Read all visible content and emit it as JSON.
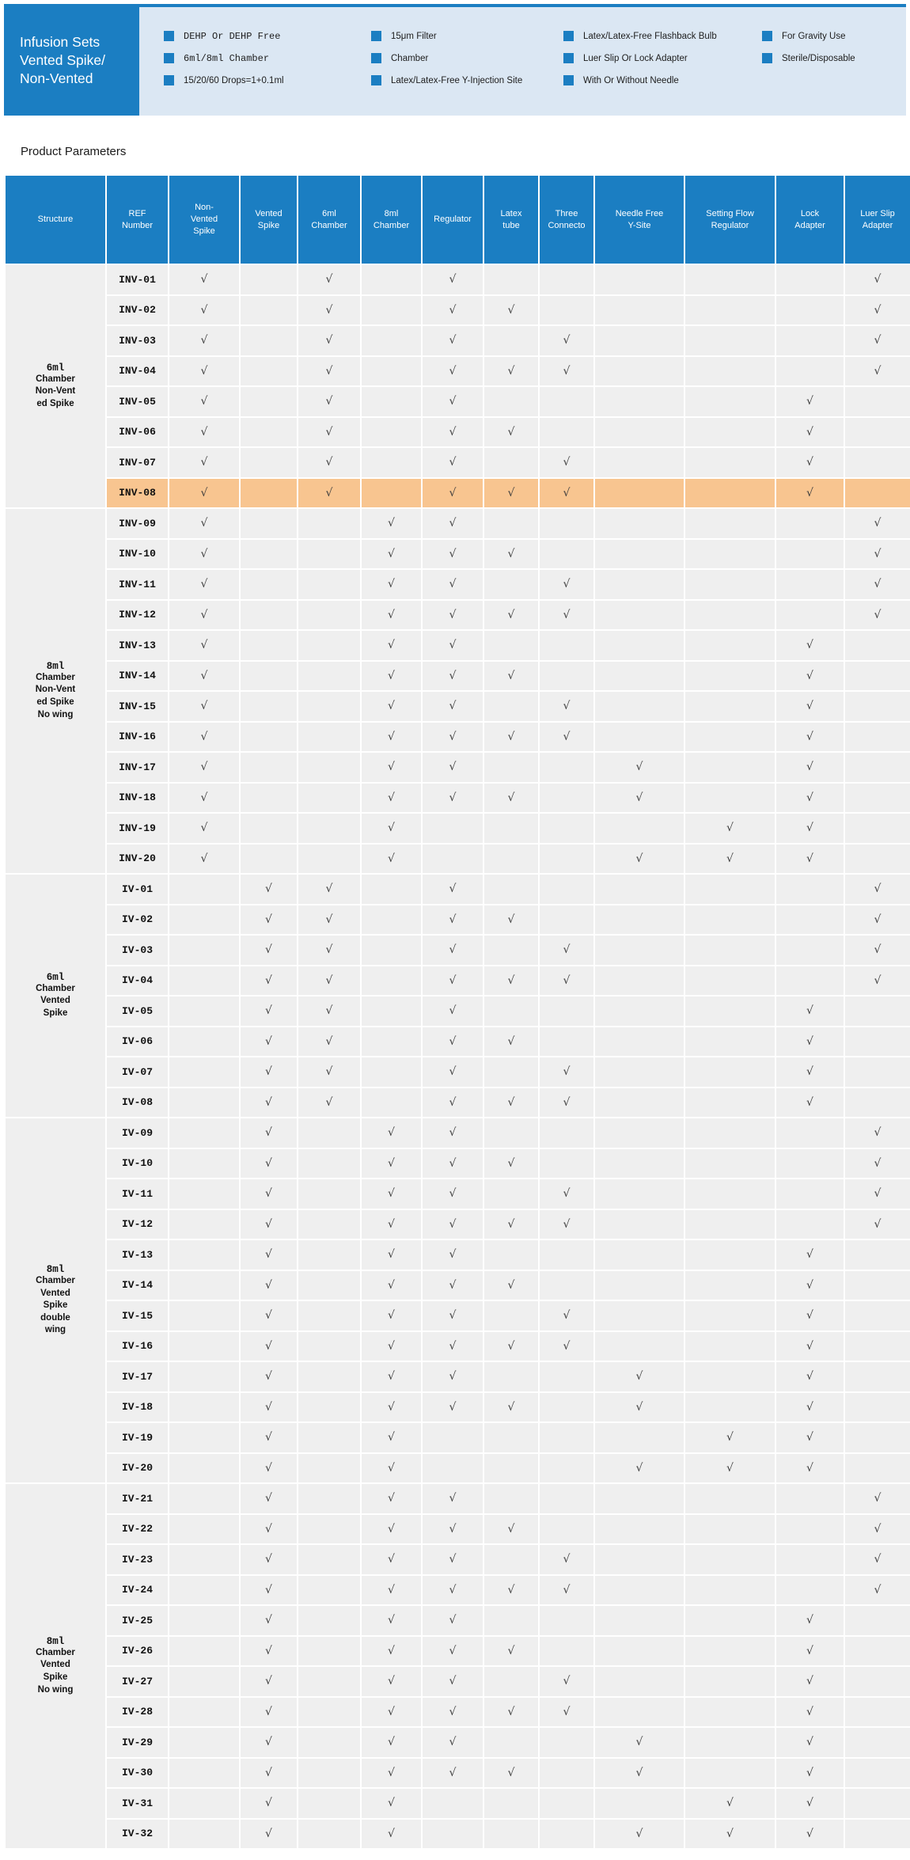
{
  "banner": {
    "title": "Infusion Sets\n Vented Spike/\nNon-Vented",
    "feature_columns": [
      {
        "items": [
          {
            "text": "DEHP Or DEHP Free",
            "mono": true
          },
          {
            "text": "6ml/8ml Chamber",
            "mono": true
          },
          {
            "text": "15/20/60 Drops=1+0.1ml",
            "mono": false
          }
        ]
      },
      {
        "items": [
          {
            "text": "15μm Filter",
            "mono": false
          },
          {
            "text": "Chamber",
            "mono": false
          },
          {
            "text": "Latex/Latex-Free Y-Injection Site",
            "mono": false
          }
        ]
      },
      {
        "items": [
          {
            "text": "Latex/Latex-Free Flashback Bulb",
            "mono": false
          },
          {
            "text": "Luer Slip Or Lock Adapter",
            "mono": false
          },
          {
            "text": "With Or Without Needle",
            "mono": false
          }
        ]
      },
      {
        "items": [
          {
            "text": "For Gravity Use",
            "mono": false
          },
          {
            "text": "Sterile/Disposable",
            "mono": false
          }
        ]
      }
    ]
  },
  "section_heading": "Product Parameters",
  "colors": {
    "primary_blue": "#1b7ec2",
    "light_blue_panel": "#dbe7f3",
    "cell_gray": "#efefef",
    "highlight_orange": "#f8c590"
  },
  "table": {
    "check_glyph": "√",
    "columns": [
      "Structure",
      "REF\nNumber",
      "Non-\nVented\nSpike",
      "Vented\nSpike",
      "6ml\nChamber",
      "8ml\nChamber",
      "Regulator",
      "Latex\ntube",
      "Three\nConnecto",
      "Needle Free\nY-Site",
      "Setting Flow\nRegulator",
      "Lock\nAdapter",
      "Luer Slip\nAdapter"
    ],
    "check_columns": [
      "non_vented_spike",
      "vented_spike",
      "chamber_6ml",
      "chamber_8ml",
      "regulator",
      "latex_tube",
      "three_connecto",
      "needle_free_y_site",
      "setting_flow_regulator",
      "lock_adapter",
      "luer_slip_adapter"
    ],
    "sections": [
      {
        "structure_size": "6ml",
        "structure_label": "Chamber\nNon-Vent\ned Spike",
        "rows": [
          {
            "ref": "INV-01",
            "checks": [
              1,
              0,
              1,
              0,
              1,
              0,
              0,
              0,
              0,
              0,
              1
            ],
            "highlighted": false
          },
          {
            "ref": "INV-02",
            "checks": [
              1,
              0,
              1,
              0,
              1,
              1,
              0,
              0,
              0,
              0,
              1
            ],
            "highlighted": false
          },
          {
            "ref": "INV-03",
            "checks": [
              1,
              0,
              1,
              0,
              1,
              0,
              1,
              0,
              0,
              0,
              1
            ],
            "highlighted": false
          },
          {
            "ref": "INV-04",
            "checks": [
              1,
              0,
              1,
              0,
              1,
              1,
              1,
              0,
              0,
              0,
              1
            ],
            "highlighted": false
          },
          {
            "ref": "INV-05",
            "checks": [
              1,
              0,
              1,
              0,
              1,
              0,
              0,
              0,
              0,
              1,
              0
            ],
            "highlighted": false
          },
          {
            "ref": "INV-06",
            "checks": [
              1,
              0,
              1,
              0,
              1,
              1,
              0,
              0,
              0,
              1,
              0
            ],
            "highlighted": false
          },
          {
            "ref": "INV-07",
            "checks": [
              1,
              0,
              1,
              0,
              1,
              0,
              1,
              0,
              0,
              1,
              0
            ],
            "highlighted": false
          },
          {
            "ref": "INV-08",
            "checks": [
              1,
              0,
              1,
              0,
              1,
              1,
              1,
              0,
              0,
              1,
              0
            ],
            "highlighted": true
          }
        ]
      },
      {
        "structure_size": "8ml",
        "structure_label": "Chamber\nNon-Vent\ned Spike\nNo wing",
        "rows": [
          {
            "ref": "INV-09",
            "checks": [
              1,
              0,
              0,
              1,
              1,
              0,
              0,
              0,
              0,
              0,
              1
            ],
            "highlighted": false
          },
          {
            "ref": "INV-10",
            "checks": [
              1,
              0,
              0,
              1,
              1,
              1,
              0,
              0,
              0,
              0,
              1
            ],
            "highlighted": false
          },
          {
            "ref": "INV-11",
            "checks": [
              1,
              0,
              0,
              1,
              1,
              0,
              1,
              0,
              0,
              0,
              1
            ],
            "highlighted": false
          },
          {
            "ref": "INV-12",
            "checks": [
              1,
              0,
              0,
              1,
              1,
              1,
              1,
              0,
              0,
              0,
              1
            ],
            "highlighted": false
          },
          {
            "ref": "INV-13",
            "checks": [
              1,
              0,
              0,
              1,
              1,
              0,
              0,
              0,
              0,
              1,
              0
            ],
            "highlighted": false
          },
          {
            "ref": "INV-14",
            "checks": [
              1,
              0,
              0,
              1,
              1,
              1,
              0,
              0,
              0,
              1,
              0
            ],
            "highlighted": false
          },
          {
            "ref": "INV-15",
            "checks": [
              1,
              0,
              0,
              1,
              1,
              0,
              1,
              0,
              0,
              1,
              0
            ],
            "highlighted": false
          },
          {
            "ref": "INV-16",
            "checks": [
              1,
              0,
              0,
              1,
              1,
              1,
              1,
              0,
              0,
              1,
              0
            ],
            "highlighted": false
          },
          {
            "ref": "INV-17",
            "checks": [
              1,
              0,
              0,
              1,
              1,
              0,
              0,
              1,
              0,
              1,
              0
            ],
            "highlighted": false
          },
          {
            "ref": "INV-18",
            "checks": [
              1,
              0,
              0,
              1,
              1,
              1,
              0,
              1,
              0,
              1,
              0
            ],
            "highlighted": false
          },
          {
            "ref": "INV-19",
            "checks": [
              1,
              0,
              0,
              1,
              0,
              0,
              0,
              0,
              1,
              1,
              0
            ],
            "highlighted": false
          },
          {
            "ref": "INV-20",
            "checks": [
              1,
              0,
              0,
              1,
              0,
              0,
              0,
              1,
              1,
              1,
              0
            ],
            "highlighted": false
          }
        ]
      },
      {
        "structure_size": "6ml",
        "structure_label": "Chamber\nVented\nSpike",
        "rows": [
          {
            "ref": "IV-01",
            "checks": [
              0,
              1,
              1,
              0,
              1,
              0,
              0,
              0,
              0,
              0,
              1
            ],
            "highlighted": false
          },
          {
            "ref": "IV-02",
            "checks": [
              0,
              1,
              1,
              0,
              1,
              1,
              0,
              0,
              0,
              0,
              1
            ],
            "highlighted": false
          },
          {
            "ref": "IV-03",
            "checks": [
              0,
              1,
              1,
              0,
              1,
              0,
              1,
              0,
              0,
              0,
              1
            ],
            "highlighted": false
          },
          {
            "ref": "IV-04",
            "checks": [
              0,
              1,
              1,
              0,
              1,
              1,
              1,
              0,
              0,
              0,
              1
            ],
            "highlighted": false
          },
          {
            "ref": "IV-05",
            "checks": [
              0,
              1,
              1,
              0,
              1,
              0,
              0,
              0,
              0,
              1,
              0
            ],
            "highlighted": false
          },
          {
            "ref": "IV-06",
            "checks": [
              0,
              1,
              1,
              0,
              1,
              1,
              0,
              0,
              0,
              1,
              0
            ],
            "highlighted": false
          },
          {
            "ref": "IV-07",
            "checks": [
              0,
              1,
              1,
              0,
              1,
              0,
              1,
              0,
              0,
              1,
              0
            ],
            "highlighted": false
          },
          {
            "ref": "IV-08",
            "checks": [
              0,
              1,
              1,
              0,
              1,
              1,
              1,
              0,
              0,
              1,
              0
            ],
            "highlighted": false
          }
        ]
      },
      {
        "structure_size": "8ml",
        "structure_label": "Chamber\nVented\nSpike\ndouble\nwing",
        "rows": [
          {
            "ref": "IV-09",
            "checks": [
              0,
              1,
              0,
              1,
              1,
              0,
              0,
              0,
              0,
              0,
              1
            ],
            "highlighted": false
          },
          {
            "ref": "IV-10",
            "checks": [
              0,
              1,
              0,
              1,
              1,
              1,
              0,
              0,
              0,
              0,
              1
            ],
            "highlighted": false
          },
          {
            "ref": "IV-11",
            "checks": [
              0,
              1,
              0,
              1,
              1,
              0,
              1,
              0,
              0,
              0,
              1
            ],
            "highlighted": false
          },
          {
            "ref": "IV-12",
            "checks": [
              0,
              1,
              0,
              1,
              1,
              1,
              1,
              0,
              0,
              0,
              1
            ],
            "highlighted": false
          },
          {
            "ref": "IV-13",
            "checks": [
              0,
              1,
              0,
              1,
              1,
              0,
              0,
              0,
              0,
              1,
              0
            ],
            "highlighted": false
          },
          {
            "ref": "IV-14",
            "checks": [
              0,
              1,
              0,
              1,
              1,
              1,
              0,
              0,
              0,
              1,
              0
            ],
            "highlighted": false
          },
          {
            "ref": "IV-15",
            "checks": [
              0,
              1,
              0,
              1,
              1,
              0,
              1,
              0,
              0,
              1,
              0
            ],
            "highlighted": false
          },
          {
            "ref": "IV-16",
            "checks": [
              0,
              1,
              0,
              1,
              1,
              1,
              1,
              0,
              0,
              1,
              0
            ],
            "highlighted": false
          },
          {
            "ref": "IV-17",
            "checks": [
              0,
              1,
              0,
              1,
              1,
              0,
              0,
              1,
              0,
              1,
              0
            ],
            "highlighted": false
          },
          {
            "ref": "IV-18",
            "checks": [
              0,
              1,
              0,
              1,
              1,
              1,
              0,
              1,
              0,
              1,
              0
            ],
            "highlighted": false
          },
          {
            "ref": "IV-19",
            "checks": [
              0,
              1,
              0,
              1,
              0,
              0,
              0,
              0,
              1,
              1,
              0
            ],
            "highlighted": false
          },
          {
            "ref": "IV-20",
            "checks": [
              0,
              1,
              0,
              1,
              0,
              0,
              0,
              1,
              1,
              1,
              0
            ],
            "highlighted": false
          }
        ]
      },
      {
        "structure_size": "8ml",
        "structure_label": "Chamber\nVented\nSpike\nNo wing",
        "rows": [
          {
            "ref": "IV-21",
            "checks": [
              0,
              1,
              0,
              1,
              1,
              0,
              0,
              0,
              0,
              0,
              1
            ],
            "highlighted": false
          },
          {
            "ref": "IV-22",
            "checks": [
              0,
              1,
              0,
              1,
              1,
              1,
              0,
              0,
              0,
              0,
              1
            ],
            "highlighted": false
          },
          {
            "ref": "IV-23",
            "checks": [
              0,
              1,
              0,
              1,
              1,
              0,
              1,
              0,
              0,
              0,
              1
            ],
            "highlighted": false
          },
          {
            "ref": "IV-24",
            "checks": [
              0,
              1,
              0,
              1,
              1,
              1,
              1,
              0,
              0,
              0,
              1
            ],
            "highlighted": false
          },
          {
            "ref": "IV-25",
            "checks": [
              0,
              1,
              0,
              1,
              1,
              0,
              0,
              0,
              0,
              1,
              0
            ],
            "highlighted": false
          },
          {
            "ref": "IV-26",
            "checks": [
              0,
              1,
              0,
              1,
              1,
              1,
              0,
              0,
              0,
              1,
              0
            ],
            "highlighted": false
          },
          {
            "ref": "IV-27",
            "checks": [
              0,
              1,
              0,
              1,
              1,
              0,
              1,
              0,
              0,
              1,
              0
            ],
            "highlighted": false
          },
          {
            "ref": "IV-28",
            "checks": [
              0,
              1,
              0,
              1,
              1,
              1,
              1,
              0,
              0,
              1,
              0
            ],
            "highlighted": false
          },
          {
            "ref": "IV-29",
            "checks": [
              0,
              1,
              0,
              1,
              1,
              0,
              0,
              1,
              0,
              1,
              0
            ],
            "highlighted": false
          },
          {
            "ref": "IV-30",
            "checks": [
              0,
              1,
              0,
              1,
              1,
              1,
              0,
              1,
              0,
              1,
              0
            ],
            "highlighted": false
          },
          {
            "ref": "IV-31",
            "checks": [
              0,
              1,
              0,
              1,
              0,
              0,
              0,
              0,
              1,
              1,
              0
            ],
            "highlighted": false
          },
          {
            "ref": "IV-32",
            "checks": [
              0,
              1,
              0,
              1,
              0,
              0,
              0,
              1,
              1,
              1,
              0
            ],
            "highlighted": false
          }
        ]
      }
    ]
  }
}
